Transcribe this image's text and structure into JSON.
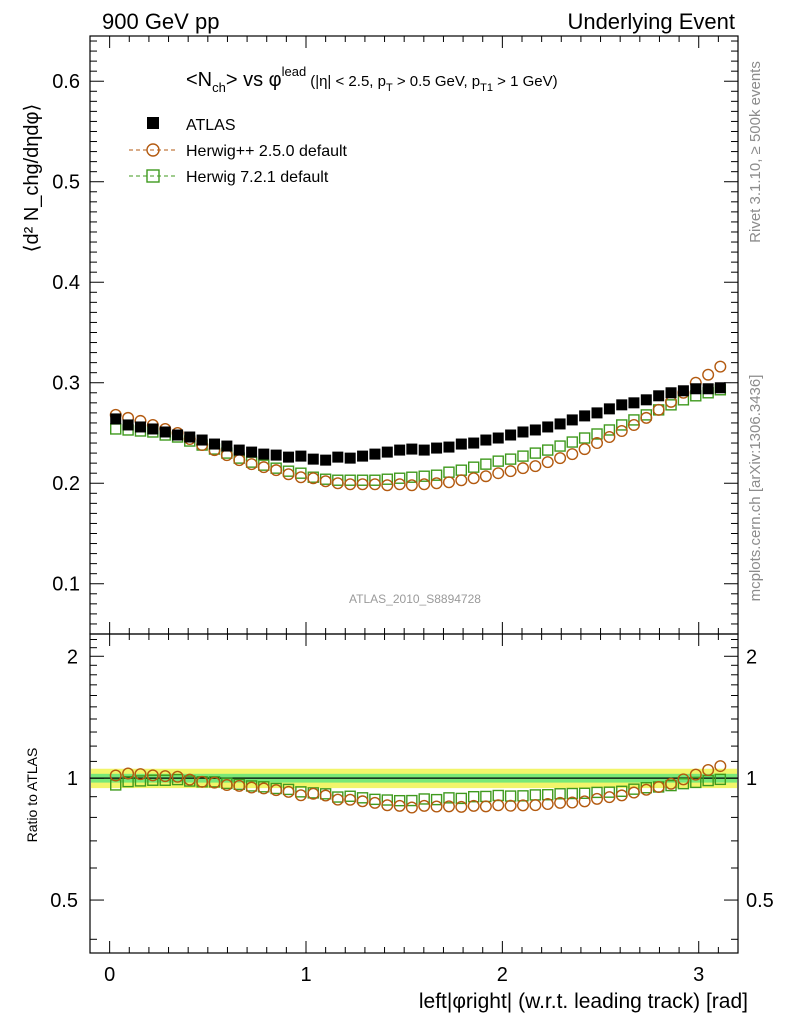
{
  "header": {
    "left": "900 GeV pp",
    "right": "Underlying Event"
  },
  "side_labels": {
    "rivet": "Rivet 3.1.10, ≥ 500k events",
    "mcplots": "mcplots.cern.ch [arXiv:1306.3436]"
  },
  "chart_data": {
    "type": "scatter",
    "title": {
      "main": "<N",
      "sub1": "ch",
      "vs": "> vs φ",
      "sup": "lead",
      "cuts1": "(|η| < 2.5, p",
      "cuts_sub1": "T",
      "cuts2": " > 0.5 GeV, p",
      "cuts_sub2": "T1",
      "cuts3": " > 1 GeV)"
    },
    "analysis_label": "ATLAS_2010_S8894728",
    "ylabel": "⟨d² N_chg/dηdφ⟩",
    "xlabel": "left|φright| (w.r.t. leading track) [rad]",
    "ratio_ylabel": "Ratio to ATLAS",
    "xlim": [
      -0.1,
      3.2
    ],
    "ylim": [
      0.05,
      0.645
    ],
    "ratio_ylim": [
      0.37,
      2.27
    ],
    "xticks": [
      0,
      1,
      2,
      3
    ],
    "yticks": [
      0.1,
      0.2,
      0.3,
      0.4,
      0.5,
      0.6
    ],
    "ratio_yticks": [
      0.5,
      1,
      2
    ],
    "x": [
      0.031,
      0.094,
      0.157,
      0.22,
      0.283,
      0.346,
      0.408,
      0.471,
      0.534,
      0.597,
      0.66,
      0.723,
      0.785,
      0.848,
      0.911,
      0.974,
      1.037,
      1.1,
      1.162,
      1.225,
      1.288,
      1.351,
      1.414,
      1.477,
      1.539,
      1.602,
      1.665,
      1.728,
      1.791,
      1.854,
      1.916,
      1.979,
      2.042,
      2.105,
      2.168,
      2.231,
      2.294,
      2.356,
      2.419,
      2.482,
      2.545,
      2.608,
      2.67,
      2.733,
      2.796,
      2.859,
      2.922,
      2.985,
      3.048,
      3.11
    ],
    "series": [
      {
        "name": "ATLAS",
        "color": "#000000",
        "marker": "filled-square",
        "values": [
          0.264,
          0.258,
          0.256,
          0.254,
          0.251,
          0.248,
          0.246,
          0.243,
          0.239,
          0.237,
          0.233,
          0.231,
          0.229,
          0.228,
          0.226,
          0.227,
          0.224,
          0.223,
          0.226,
          0.225,
          0.227,
          0.229,
          0.231,
          0.233,
          0.234,
          0.233,
          0.235,
          0.236,
          0.239,
          0.24,
          0.243,
          0.245,
          0.248,
          0.251,
          0.253,
          0.256,
          0.259,
          0.263,
          0.267,
          0.27,
          0.274,
          0.278,
          0.28,
          0.283,
          0.287,
          0.29,
          0.292,
          0.294,
          0.294,
          0.295
        ]
      },
      {
        "name": "Herwig++ 2.5.0 default",
        "color": "#b35a10",
        "marker": "open-circle",
        "values": [
          0.268,
          0.265,
          0.262,
          0.258,
          0.254,
          0.25,
          0.244,
          0.238,
          0.233,
          0.228,
          0.223,
          0.219,
          0.216,
          0.213,
          0.209,
          0.206,
          0.205,
          0.202,
          0.2,
          0.199,
          0.199,
          0.199,
          0.198,
          0.199,
          0.198,
          0.199,
          0.2,
          0.201,
          0.203,
          0.205,
          0.207,
          0.21,
          0.212,
          0.215,
          0.217,
          0.221,
          0.225,
          0.229,
          0.234,
          0.24,
          0.246,
          0.252,
          0.258,
          0.265,
          0.273,
          0.281,
          0.29,
          0.3,
          0.308,
          0.316
        ]
      },
      {
        "name": "Herwig 7.2.1 default",
        "color": "#3f9a1e",
        "marker": "open-square",
        "values": [
          0.254,
          0.253,
          0.252,
          0.251,
          0.248,
          0.246,
          0.242,
          0.238,
          0.234,
          0.23,
          0.225,
          0.221,
          0.218,
          0.215,
          0.212,
          0.21,
          0.206,
          0.204,
          0.203,
          0.203,
          0.203,
          0.203,
          0.204,
          0.205,
          0.206,
          0.207,
          0.208,
          0.211,
          0.213,
          0.216,
          0.219,
          0.222,
          0.224,
          0.227,
          0.23,
          0.233,
          0.237,
          0.241,
          0.245,
          0.249,
          0.253,
          0.258,
          0.263,
          0.268,
          0.273,
          0.278,
          0.283,
          0.287,
          0.29,
          0.293
        ]
      }
    ],
    "ratio_band": {
      "inner_color": "#78e878",
      "outer_color": "#f2f56a",
      "inner_halfwidth": 0.025,
      "outer_halfwidth": 0.055
    }
  }
}
